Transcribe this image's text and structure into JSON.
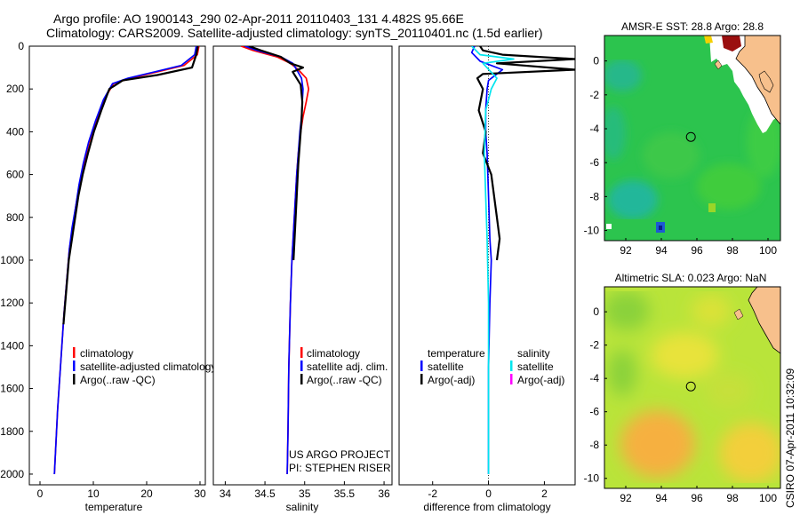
{
  "title": {
    "line1": "Argo profile: AO 1900143_290 02-Apr-2011 20110403_131 4.482S 95.66E",
    "line2": "Climatology: CARS2009. Satellite-adjusted climatology: synTS_20110401.nc (1.5d earlier)"
  },
  "colors": {
    "climatology": "#ff0000",
    "satellite": "#0000ff",
    "argo": "#000000",
    "sat_diff": "#00e5ee",
    "argo_adj": "#ff00ff",
    "land": "#f7c08c",
    "coast": "#000000"
  },
  "annotations": {
    "project": "US ARGO PROJECT",
    "pi": "PI: STEPHEN RISER",
    "footer": "CSIRO 07-Apr-2011 10:32:09"
  },
  "chart_data": [
    {
      "type": "line",
      "id": "temperature",
      "xlabel": "temperature",
      "ylabel": "",
      "xlim": [
        -2,
        31
      ],
      "ylim": [
        2050,
        0
      ],
      "xticks": [
        0,
        10,
        20,
        30
      ],
      "yticks": [
        0,
        200,
        400,
        600,
        800,
        1000,
        1200,
        1400,
        1600,
        1800,
        2000
      ],
      "legend": {
        "position": "lower-center",
        "entries": [
          "climatology",
          "satellite-adjusted climatology",
          "Argo(..raw -QC)"
        ]
      },
      "series": [
        {
          "name": "climatology",
          "color": "#ff0000",
          "x": [
            29.8,
            29.5,
            27,
            22,
            17,
            13.8,
            12,
            10.5,
            9.2,
            8.2,
            7.4,
            6.7,
            6.1,
            5.5,
            5.0,
            4.5,
            4.1,
            3.7,
            3.3,
            3.0,
            2.8,
            2.7
          ],
          "y": [
            0,
            40,
            90,
            120,
            150,
            175,
            250,
            350,
            450,
            550,
            650,
            750,
            850,
            950,
            1100,
            1250,
            1400,
            1550,
            1700,
            1850,
            1950,
            2000
          ]
        },
        {
          "name": "satellite",
          "color": "#0000ff",
          "x": [
            29.3,
            29.0,
            26.5,
            21.5,
            16.5,
            13.6,
            11.9,
            10.4,
            9.1,
            8.1,
            7.3,
            6.7,
            6.0,
            5.5,
            5.0,
            4.5,
            4.1,
            3.7,
            3.3,
            3.0,
            2.8,
            2.7
          ],
          "y": [
            0,
            40,
            90,
            120,
            150,
            175,
            250,
            350,
            450,
            550,
            650,
            750,
            850,
            950,
            1100,
            1250,
            1400,
            1550,
            1700,
            1850,
            1950,
            2000
          ]
        },
        {
          "name": "argo",
          "color": "#000000",
          "x": [
            29.6,
            29.3,
            28.5,
            22,
            15.5,
            13,
            11.5,
            10.1,
            9.0,
            8.0,
            7.2,
            6.6,
            6.0,
            5.4,
            4.9,
            4.4
          ],
          "y": [
            0,
            40,
            100,
            135,
            160,
            200,
            300,
            400,
            500,
            600,
            700,
            800,
            900,
            1000,
            1150,
            1300
          ]
        }
      ]
    },
    {
      "type": "line",
      "id": "salinity",
      "xlabel": "salinity",
      "xlim": [
        33.85,
        36.1
      ],
      "ylim": [
        2050,
        0
      ],
      "xticks": [
        34,
        34.5,
        35,
        35.5,
        36
      ],
      "legend": {
        "position": "lower-center",
        "entries": [
          "climatology",
          "satellite adj. clim.",
          "Argo(..raw -QC)"
        ]
      },
      "series": [
        {
          "name": "climatology",
          "color": "#ff0000",
          "x": [
            34.2,
            34.35,
            34.65,
            34.82,
            34.92,
            35.02,
            35.05,
            35.02,
            34.98,
            34.95,
            34.92,
            34.9,
            34.87,
            34.84,
            34.82,
            34.8,
            34.79,
            34.78
          ],
          "y": [
            0,
            20,
            50,
            80,
            110,
            150,
            200,
            260,
            330,
            400,
            500,
            600,
            800,
            1000,
            1200,
            1500,
            1800,
            2000
          ]
        },
        {
          "name": "satellite",
          "color": "#0000ff",
          "x": [
            34.25,
            34.4,
            34.7,
            34.85,
            34.9,
            34.96,
            34.98,
            34.97,
            34.96,
            34.94,
            34.92,
            34.9,
            34.87,
            34.84,
            34.82,
            34.8,
            34.79,
            34.78
          ],
          "y": [
            0,
            20,
            50,
            80,
            110,
            150,
            200,
            260,
            330,
            400,
            500,
            600,
            800,
            1000,
            1200,
            1500,
            1800,
            2000
          ]
        },
        {
          "name": "argo",
          "color": "#000000",
          "x": [
            34.3,
            34.45,
            34.7,
            34.82,
            34.98,
            34.85,
            34.95,
            34.97,
            34.96,
            34.94,
            34.92,
            34.9,
            34.88,
            34.86
          ],
          "y": [
            0,
            20,
            50,
            80,
            100,
            120,
            180,
            260,
            350,
            450,
            550,
            700,
            850,
            1000
          ]
        }
      ]
    },
    {
      "type": "line",
      "id": "difference",
      "xlabel": "difference from climatology",
      "xlim": [
        -3.2,
        3.1
      ],
      "ylim": [
        2050,
        0
      ],
      "xticks": [
        -2,
        0,
        2
      ],
      "legend": {
        "position": "lower-center",
        "headers": [
          "temperature",
          "salinity"
        ],
        "entries": [
          "satellite",
          "Argo(-adj)",
          "satellite",
          "Argo(-adj)"
        ]
      },
      "series": [
        {
          "name": "temperature satellite",
          "color": "#0000ff",
          "x": [
            -0.5,
            -0.6,
            -0.3,
            0.5,
            0.3,
            0.0,
            -0.05,
            -0.1,
            -0.1,
            -0.05,
            0.0,
            0.05,
            0.1,
            0.05,
            0.0,
            0.0,
            0.0
          ],
          "y": [
            0,
            30,
            70,
            110,
            130,
            160,
            200,
            300,
            400,
            500,
            700,
            900,
            1000,
            1200,
            1500,
            1800,
            2000
          ]
        },
        {
          "name": "temperature Argo(-adj)",
          "color": "#000000",
          "x": [
            -0.3,
            -0.2,
            0.5,
            3.1,
            0.3,
            3.1,
            -0.2,
            -0.4,
            -0.2,
            -0.35,
            -0.1,
            -0.2,
            0.1,
            0.3,
            0.4,
            0.3
          ],
          "y": [
            0,
            20,
            40,
            60,
            80,
            110,
            130,
            150,
            200,
            300,
            400,
            500,
            600,
            800,
            900,
            1000
          ]
        },
        {
          "name": "salinity satellite",
          "color": "#00e5ee",
          "x": [
            -0.6,
            -0.3,
            0.9,
            -0.2,
            0.3,
            0.1,
            -0.1,
            -0.15,
            -0.1,
            -0.05,
            0.0,
            0.0,
            0.0
          ],
          "y": [
            0,
            40,
            60,
            80,
            150,
            200,
            300,
            500,
            700,
            900,
            1200,
            1600,
            2000
          ]
        }
      ]
    },
    {
      "type": "heatmap",
      "id": "sst-map",
      "title": "AMSR-E SST: 28.8 Argo: 28.8",
      "xlim": [
        90.8,
        100.7
      ],
      "ylim": [
        -10.6,
        1.5
      ],
      "xticks": [
        92,
        94,
        96,
        98,
        100
      ],
      "yticks": [
        0,
        -2,
        -4,
        -6,
        -8,
        -10
      ],
      "marker": {
        "lon": 95.66,
        "lat": -4.482
      }
    },
    {
      "type": "heatmap",
      "id": "sla-map",
      "title": "Altimetric SLA: 0.023 Argo: NaN",
      "xlim": [
        90.8,
        100.7
      ],
      "ylim": [
        -10.6,
        1.5
      ],
      "xticks": [
        92,
        94,
        96,
        98,
        100
      ],
      "yticks": [
        0,
        -2,
        -4,
        -6,
        -8,
        -10
      ],
      "marker": {
        "lon": 95.66,
        "lat": -4.482
      }
    }
  ]
}
